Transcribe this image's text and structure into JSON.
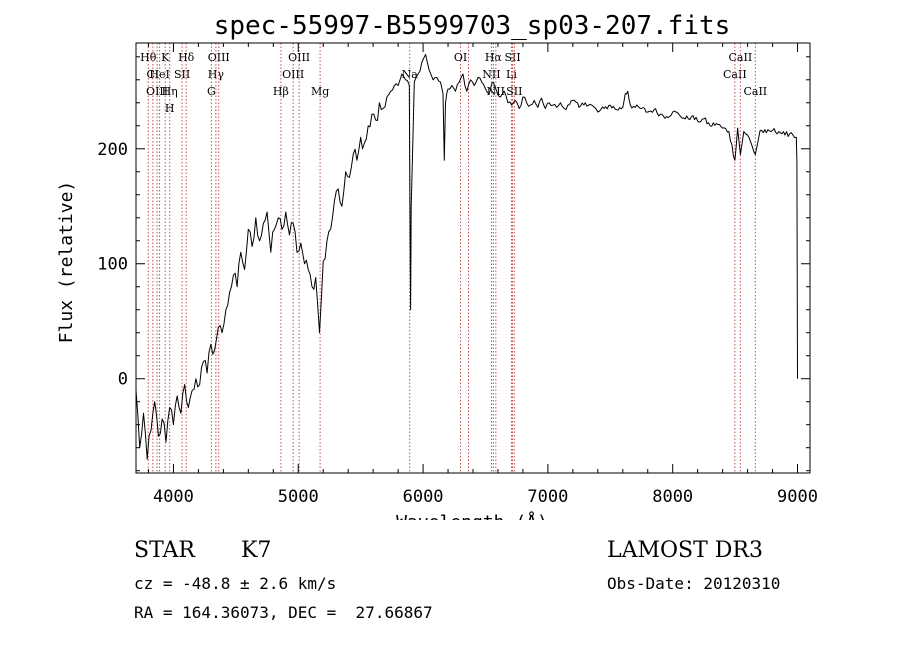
{
  "chart_data": {
    "type": "line",
    "title": "spec-55997-B5599703_sp03-207.fits",
    "xlabel": "Wavelength (Å)",
    "ylabel": "Flux (relative)",
    "xlim": [
      3700,
      9100
    ],
    "ylim": [
      -82,
      292
    ],
    "xticks": [
      4000,
      5000,
      6000,
      7000,
      8000,
      9000
    ],
    "yticks": [
      0,
      100,
      200
    ],
    "grid": false,
    "series": [
      {
        "name": "spectrum",
        "color": "#000000",
        "x": [
          3700,
          3730,
          3760,
          3790,
          3820,
          3850,
          3880,
          3910,
          3940,
          3970,
          4000,
          4030,
          4060,
          4090,
          4120,
          4150,
          4180,
          4210,
          4240,
          4270,
          4300,
          4330,
          4360,
          4390,
          4420,
          4450,
          4480,
          4510,
          4540,
          4570,
          4600,
          4630,
          4660,
          4690,
          4720,
          4750,
          4780,
          4810,
          4840,
          4870,
          4900,
          4930,
          4960,
          4990,
          5020,
          5050,
          5080,
          5110,
          5140,
          5170,
          5185,
          5200,
          5230,
          5260,
          5290,
          5320,
          5350,
          5380,
          5410,
          5440,
          5470,
          5500,
          5530,
          5560,
          5590,
          5620,
          5650,
          5680,
          5710,
          5740,
          5770,
          5800,
          5830,
          5860,
          5890,
          5895,
          5900,
          5905,
          5930,
          5960,
          5990,
          6020,
          6050,
          6080,
          6110,
          6140,
          6160,
          6170,
          6180,
          6200,
          6230,
          6260,
          6290,
          6320,
          6350,
          6380,
          6410,
          6440,
          6470,
          6500,
          6530,
          6563,
          6590,
          6620,
          6650,
          6680,
          6710,
          6740,
          6770,
          6800,
          6830,
          6860,
          6890,
          6920,
          6950,
          6980,
          7010,
          7040,
          7070,
          7100,
          7130,
          7160,
          7200,
          7250,
          7300,
          7350,
          7400,
          7450,
          7500,
          7550,
          7600,
          7620,
          7640,
          7660,
          7700,
          7750,
          7800,
          7850,
          7900,
          7950,
          8000,
          8050,
          8100,
          8150,
          8200,
          8250,
          8300,
          8350,
          8400,
          8450,
          8498,
          8520,
          8542,
          8570,
          8600,
          8662,
          8700,
          8750,
          8800,
          8850,
          8900,
          8950,
          8990,
          8995,
          9000
        ],
        "y": [
          -10,
          -60,
          -30,
          -70,
          -45,
          -20,
          -50,
          -35,
          -55,
          -25,
          -40,
          -15,
          -30,
          -5,
          -25,
          -10,
          0,
          -5,
          15,
          5,
          30,
          25,
          45,
          40,
          60,
          75,
          90,
          80,
          110,
          95,
          130,
          115,
          140,
          120,
          135,
          145,
          110,
          130,
          140,
          130,
          145,
          125,
          135,
          110,
          118,
          100,
          95,
          80,
          88,
          40,
          70,
          102,
          120,
          130,
          155,
          165,
          150,
          180,
          175,
          195,
          190,
          210,
          205,
          220,
          230,
          225,
          240,
          235,
          245,
          250,
          255,
          255,
          265,
          260,
          255,
          140,
          60,
          150,
          258,
          265,
          275,
          282,
          268,
          260,
          262,
          258,
          248,
          190,
          240,
          252,
          255,
          250,
          258,
          265,
          250,
          260,
          255,
          262,
          258,
          252,
          248,
          258,
          250,
          245,
          250,
          240,
          238,
          242,
          235,
          245,
          240,
          238,
          242,
          236,
          244,
          235,
          240,
          238,
          236,
          240,
          235,
          238,
          242,
          236,
          240,
          238,
          232,
          235,
          238,
          234,
          236,
          248,
          250,
          238,
          236,
          235,
          232,
          234,
          230,
          228,
          232,
          230,
          226,
          228,
          224,
          226,
          220,
          222,
          218,
          215,
          190,
          218,
          195,
          215,
          212,
          195,
          216,
          214,
          216,
          215,
          212,
          214,
          210,
          190,
          0
        ]
      }
    ],
    "line_markers": [
      {
        "wavelength": 3798,
        "labels": [
          "Hθ"
        ],
        "row": 0
      },
      {
        "wavelength": 3835,
        "labels": [
          "CI"
        ],
        "row": 1
      },
      {
        "wavelength": 3869,
        "labels": [
          "OIII"
        ],
        "row": 2
      },
      {
        "wavelength": 3889,
        "labels": [
          "HeI"
        ],
        "row": 1
      },
      {
        "wavelength": 3934,
        "labels": [
          "K"
        ],
        "row": 0
      },
      {
        "wavelength": 3970,
        "labels": [
          "Hη",
          "H"
        ],
        "row": 2
      },
      {
        "wavelength": 4069,
        "labels": [
          "SII"
        ],
        "row": 1
      },
      {
        "wavelength": 4102,
        "labels": [
          "Hδ"
        ],
        "row": 0
      },
      {
        "wavelength": 4304,
        "labels": [
          "G"
        ],
        "row": 2
      },
      {
        "wavelength": 4340,
        "labels": [
          "Hγ"
        ],
        "row": 1
      },
      {
        "wavelength": 4363,
        "labels": [
          "OIII"
        ],
        "row": 0
      },
      {
        "wavelength": 4861,
        "labels": [
          "Hβ"
        ],
        "row": 2
      },
      {
        "wavelength": 4959,
        "labels": [
          "OIII"
        ],
        "row": 1
      },
      {
        "wavelength": 5007,
        "labels": [
          "OIII"
        ],
        "row": 0
      },
      {
        "wavelength": 5175,
        "labels": [
          "Mg"
        ],
        "row": 2
      },
      {
        "wavelength": 5893,
        "labels": [
          "Na"
        ],
        "row": 1
      },
      {
        "wavelength": 6300,
        "labels": [
          "OI"
        ],
        "row": 0
      },
      {
        "wavelength": 6364,
        "labels": [],
        "row": 0
      },
      {
        "wavelength": 6548,
        "labels": [
          "NII"
        ],
        "row": 1
      },
      {
        "wavelength": 6563,
        "labels": [
          "Hα"
        ],
        "row": 0
      },
      {
        "wavelength": 6583,
        "labels": [
          "NII"
        ],
        "row": 2
      },
      {
        "wavelength": 6708,
        "labels": [
          "Li"
        ],
        "row": 1
      },
      {
        "wavelength": 6717,
        "labels": [
          "SII"
        ],
        "row": 0
      },
      {
        "wavelength": 6731,
        "labels": [
          "SII"
        ],
        "row": 2
      },
      {
        "wavelength": 8498,
        "labels": [
          "CaII"
        ],
        "row": 1
      },
      {
        "wavelength": 8542,
        "labels": [
          "CaII"
        ],
        "row": 0
      },
      {
        "wavelength": 8662,
        "labels": [
          "CaII"
        ],
        "row": 2
      }
    ],
    "marker_color": "#c0504d"
  },
  "info": {
    "object_class": "STAR",
    "subclass": "K7",
    "survey": "LAMOST DR3",
    "cz": "cz = -48.8 ± 2.6 km/s",
    "obs_date": "Obs-Date: 20120310",
    "coords": "RA = 164.36073, DEC =  27.66867"
  }
}
